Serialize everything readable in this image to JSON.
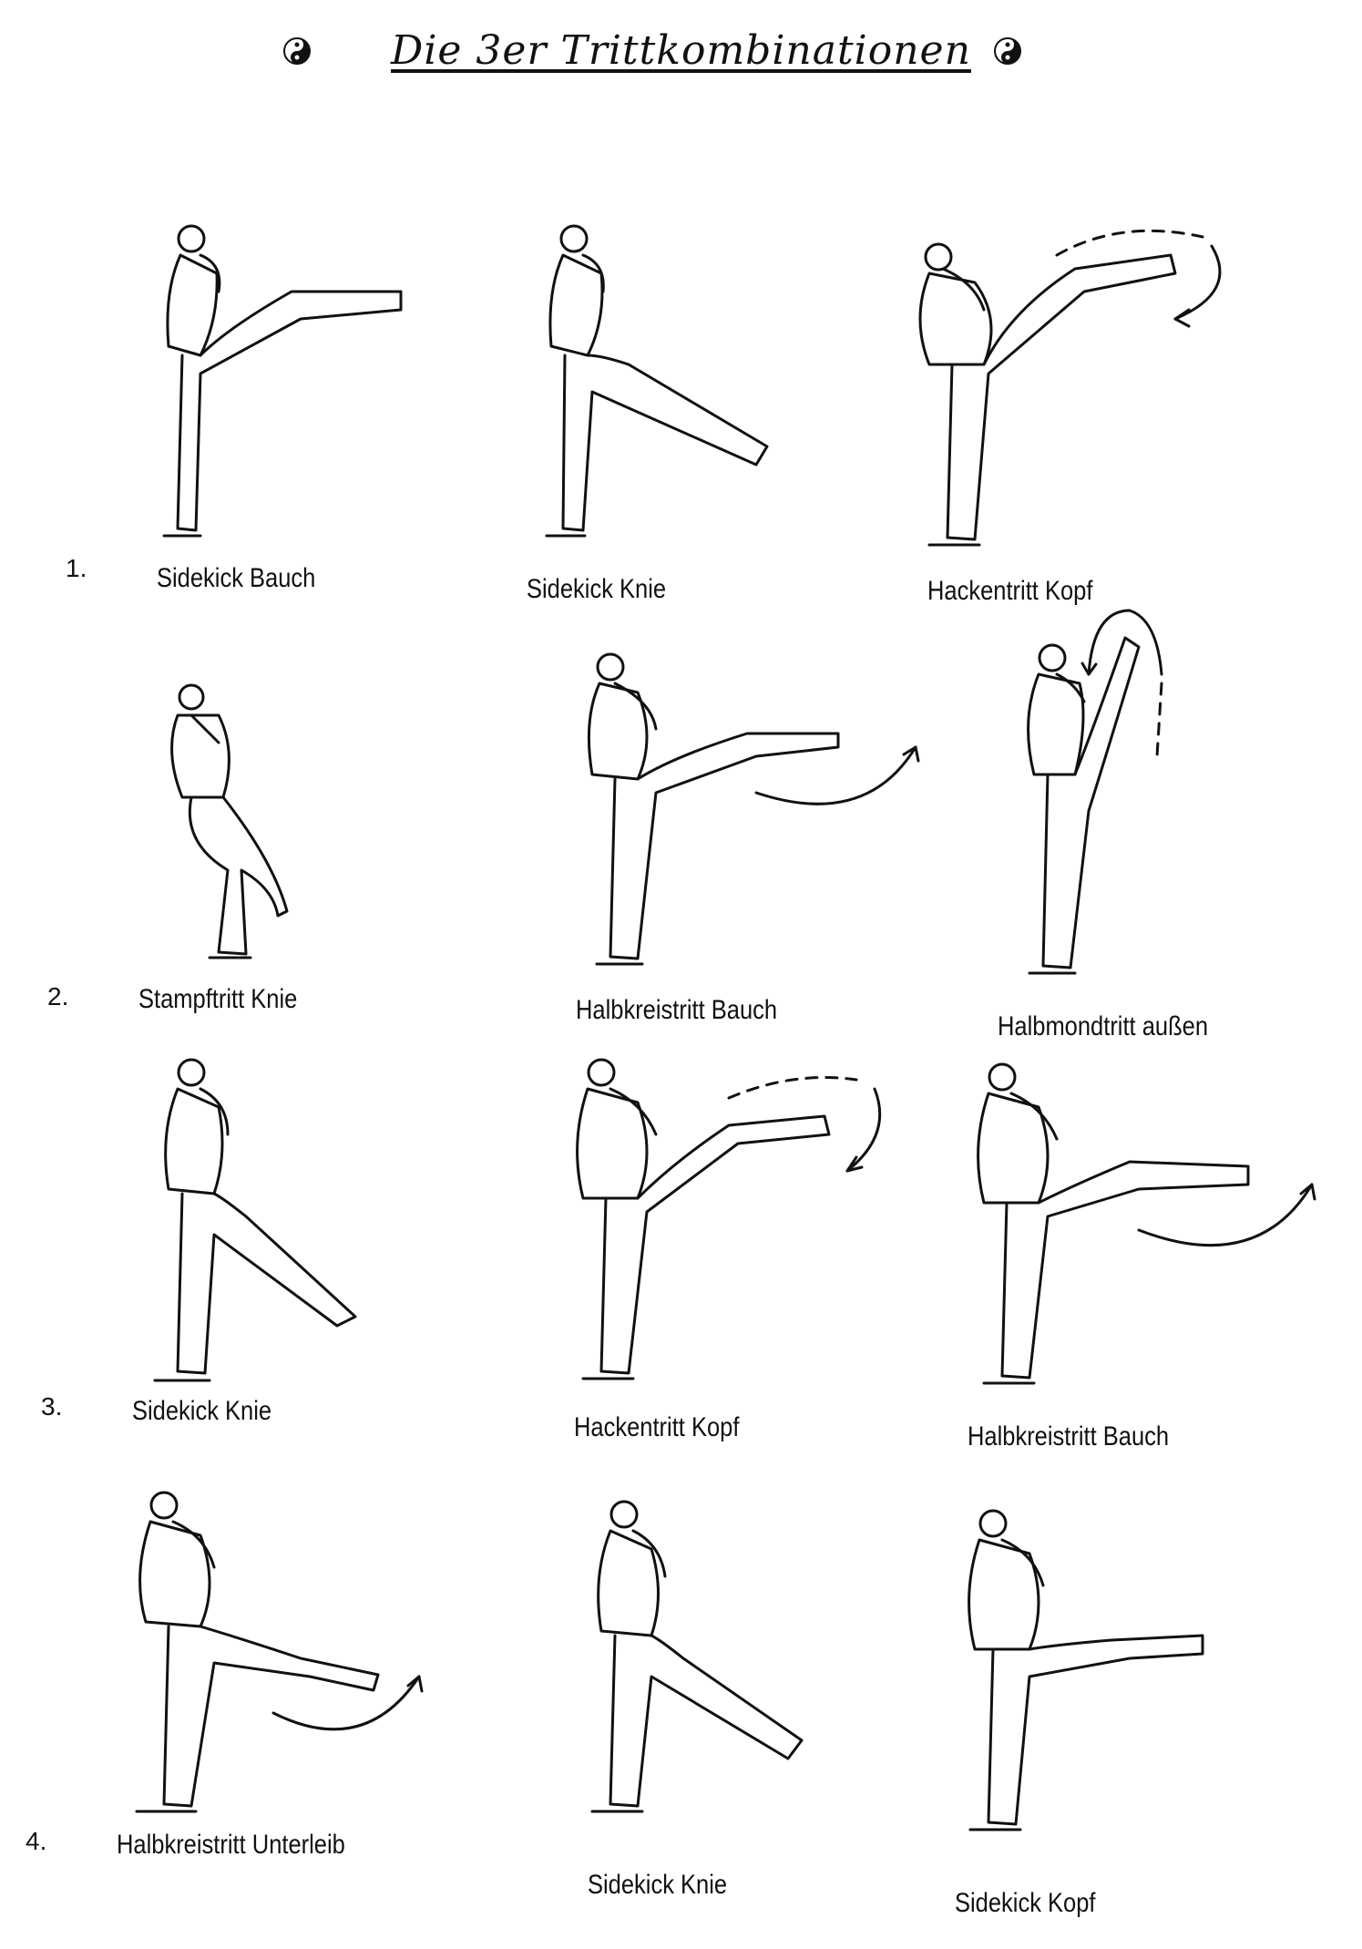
{
  "title": "Die 3er Trittkombinationen",
  "rows": [
    {
      "number": "1.",
      "kicks": [
        "Sidekick Bauch",
        "Sidekick Knie",
        "Hackentritt Kopf"
      ]
    },
    {
      "number": "2.",
      "kicks": [
        "Stampftritt Knie",
        "Halbkreistritt Bauch",
        "Halbmondtritt außen"
      ]
    },
    {
      "number": "3.",
      "kicks": [
        "Sidekick Knie",
        "Hackentritt Kopf",
        "Halbkreistritt Bauch"
      ]
    },
    {
      "number": "4.",
      "kicks": [
        "Halbkreistritt Unterleib",
        "Sidekick Knie",
        "Sidekick Kopf"
      ]
    }
  ],
  "icons": [
    "yin-yang-icon",
    "yin-yang-icon"
  ]
}
